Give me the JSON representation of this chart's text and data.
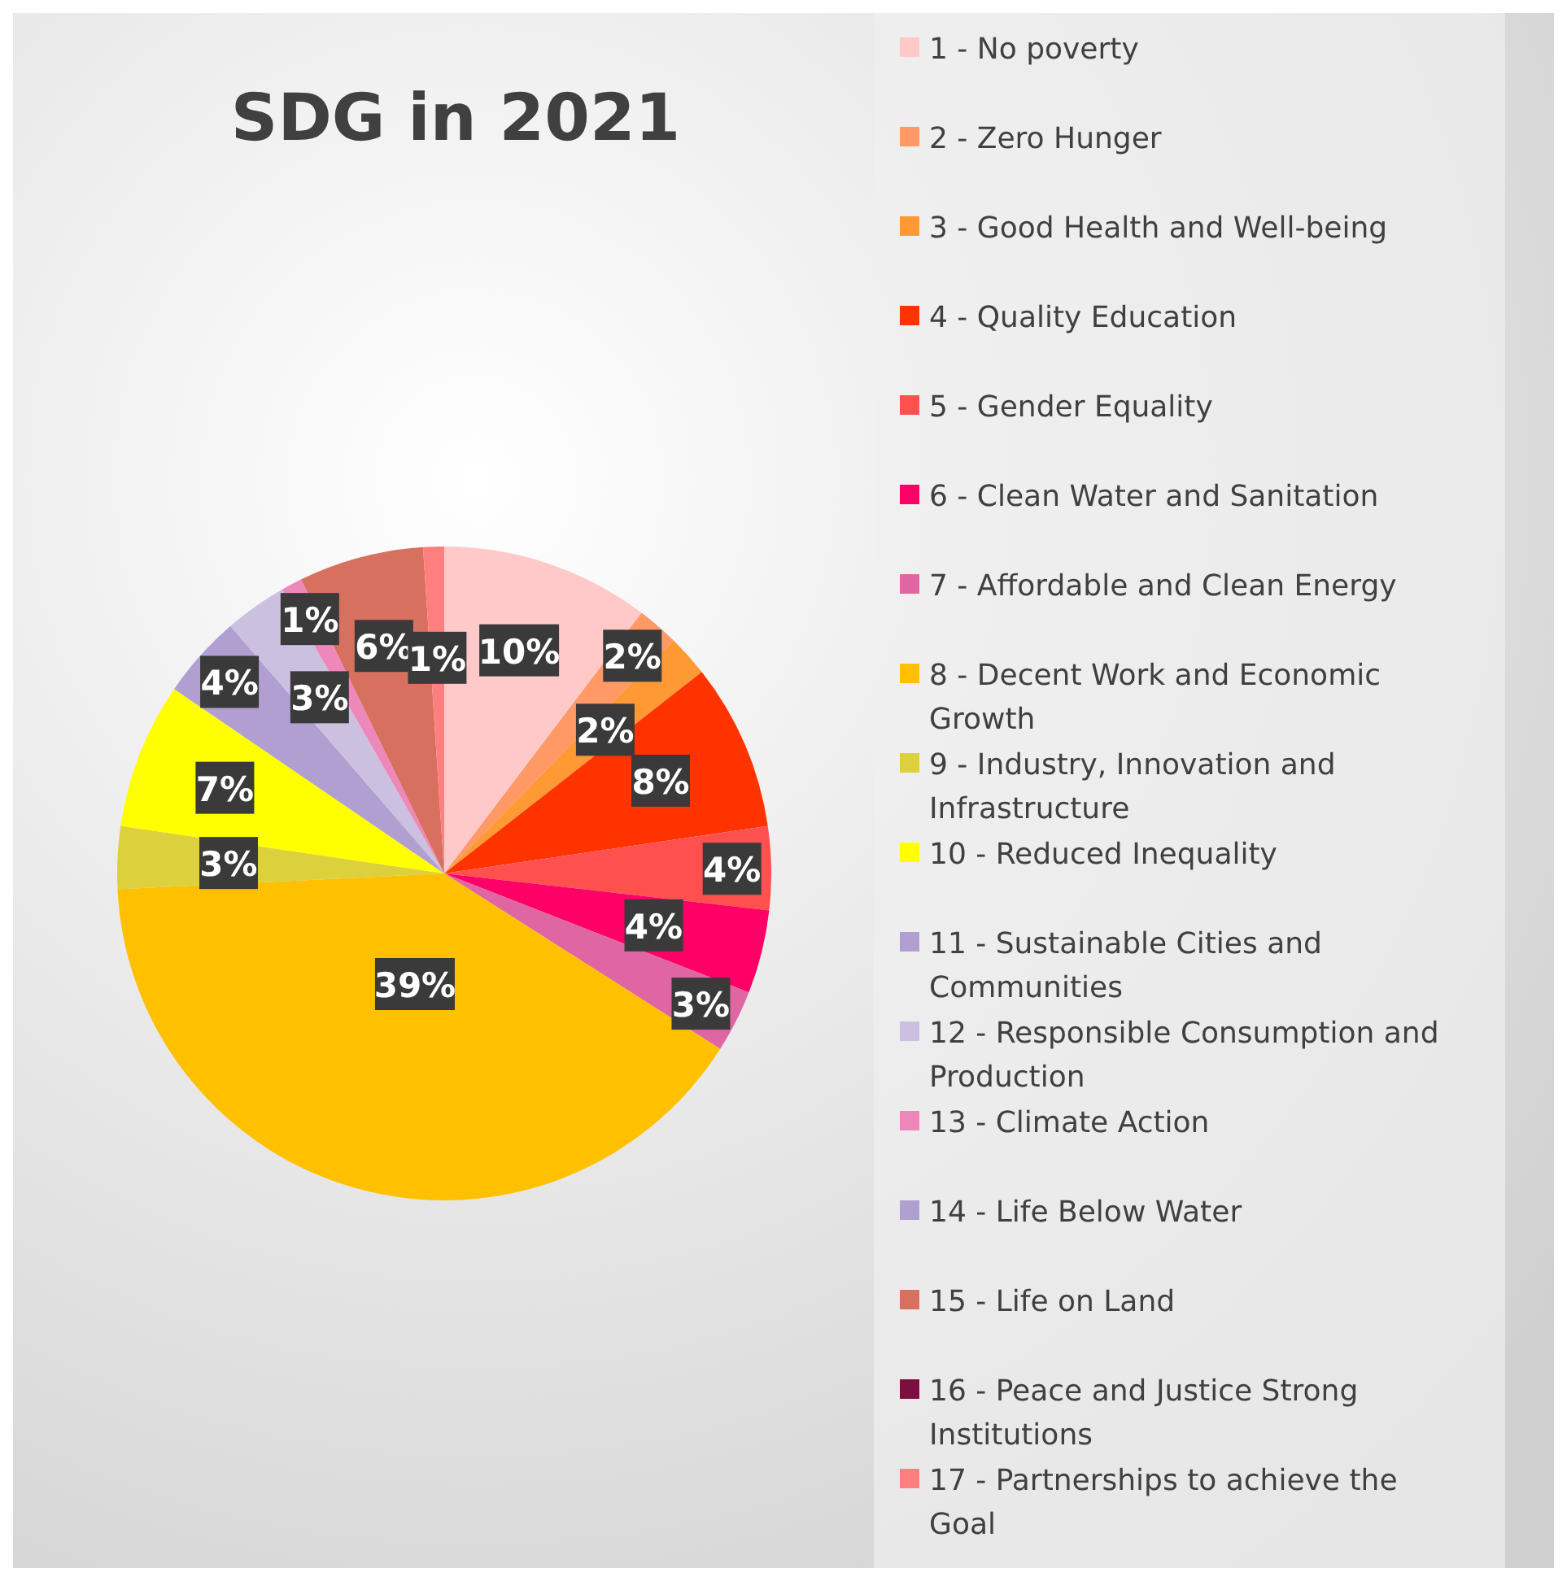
{
  "chart_data": {
    "type": "pie",
    "title": "SDG in 2021",
    "categories": [
      "1 - No poverty",
      "2 - Zero Hunger",
      "3 - Good Health and Well-being",
      "4 - Quality Education",
      "5 - Gender Equality",
      "6 - Clean Water and Sanitation",
      "7 - Affordable and Clean Energy",
      "8 - Decent Work and Economic Growth",
      "9 - Industry, Innovation and Infrastructure",
      "10 - Reduced Inequality",
      "11 - Sustainable Cities and Communities",
      "12 - Responsible Consumption and Production",
      "13 - Climate Action",
      "14 - Life Below Water",
      "15 - Life on Land",
      "16 - Peace and Justice Strong Institutions",
      "17 - Partnerships to achieve the Goal"
    ],
    "values": [
      10,
      2,
      2,
      8,
      4,
      4,
      3,
      39,
      3,
      7,
      4,
      3,
      1,
      0,
      6,
      0,
      1
    ],
    "value_labels": [
      "10%",
      "2%",
      "2%",
      "8%",
      "4%",
      "4%",
      "3%",
      "39%",
      "3%",
      "7%",
      "4%",
      "3%",
      "1%",
      null,
      "6%",
      null,
      "1%"
    ],
    "colors": [
      "#ffc9c9",
      "#ff9966",
      "#ff9933",
      "#ff3300",
      "#ff5050",
      "#ff0066",
      "#e066a3",
      "#ffc000",
      "#dcd03c",
      "#ffff00",
      "#b09fd0",
      "#cbc0e0",
      "#ee88bb",
      "#b0a0d0",
      "#d87060",
      "#7b1040",
      "#ff7f7f"
    ],
    "legend": "right"
  }
}
